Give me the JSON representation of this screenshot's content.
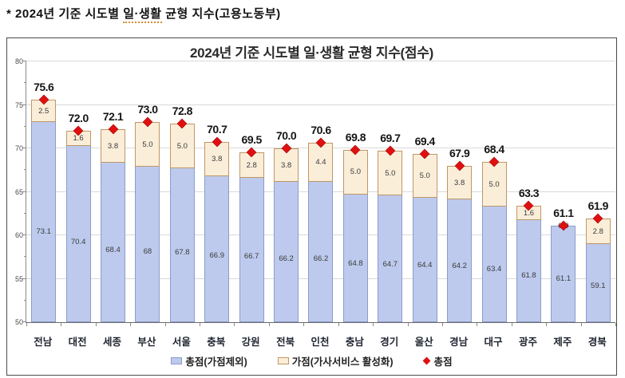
{
  "annotation": {
    "prefix": "* 2024년 기준 시도별 ",
    "underlined": "일·생활",
    "suffix": " 균형 지수(고용노동부)"
  },
  "chart_data": {
    "type": "bar",
    "stacked": true,
    "title": "2024년 기준 시도별 일·생활 균형 지수(점수)",
    "categories": [
      "전남",
      "대전",
      "세종",
      "부산",
      "서울",
      "충북",
      "강원",
      "전북",
      "인천",
      "충남",
      "경기",
      "울산",
      "경남",
      "대구",
      "광주",
      "제주",
      "경북"
    ],
    "series": [
      {
        "name": "총점(가점제외)",
        "values": [
          73.1,
          70.4,
          68.4,
          68,
          67.8,
          66.9,
          66.7,
          66.2,
          66.2,
          64.8,
          64.7,
          64.4,
          64.2,
          63.4,
          61.8,
          61.1,
          59.1
        ],
        "labels": [
          "73.1",
          "70.4",
          "68.4",
          "68",
          "67.8",
          "66.9",
          "66.7",
          "66.2",
          "66.2",
          "64.8",
          "64.7",
          "64.4",
          "64.2",
          "63.4",
          "61.8",
          "61.1",
          "59.1"
        ]
      },
      {
        "name": "가점(가사서비스 활성화)",
        "values": [
          2.5,
          1.6,
          3.8,
          5.0,
          5.0,
          3.8,
          2.8,
          3.8,
          4.4,
          5.0,
          5.0,
          5.0,
          3.8,
          5.0,
          1.6,
          0.0,
          2.8
        ],
        "labels": [
          "2.5",
          "1.6",
          "3.8",
          "5.0",
          "5.0",
          "3.8",
          "2.8",
          "3.8",
          "4.4",
          "5.0",
          "5.0",
          "5.0",
          "3.8",
          "5.0",
          "1.6",
          "0.0",
          "2.8"
        ]
      }
    ],
    "totals": {
      "name": "총점",
      "values": [
        75.6,
        72.0,
        72.1,
        73.0,
        72.8,
        70.7,
        69.5,
        70.0,
        70.6,
        69.8,
        69.7,
        69.4,
        67.9,
        68.4,
        63.3,
        61.1,
        61.9
      ],
      "labels": [
        "75.6",
        "72.0",
        "72.1",
        "73.0",
        "72.8",
        "70.7",
        "69.5",
        "70.0",
        "70.6",
        "69.8",
        "69.7",
        "69.4",
        "67.9",
        "68.4",
        "63.3",
        "61.1",
        "61.9"
      ]
    },
    "ylim": [
      50,
      80
    ],
    "yticks": [
      50,
      55,
      60,
      65,
      70,
      75,
      80
    ],
    "minor_tick_step": 2.5,
    "grid": true,
    "legend_position": "bottom",
    "colors": {
      "base_fill": "#bdcaed",
      "base_border": "#8b9dcd",
      "bonus_fill": "#faeed9",
      "bonus_border": "#bf9766",
      "total_marker": "#e01010",
      "gridline": "#dadada"
    }
  }
}
